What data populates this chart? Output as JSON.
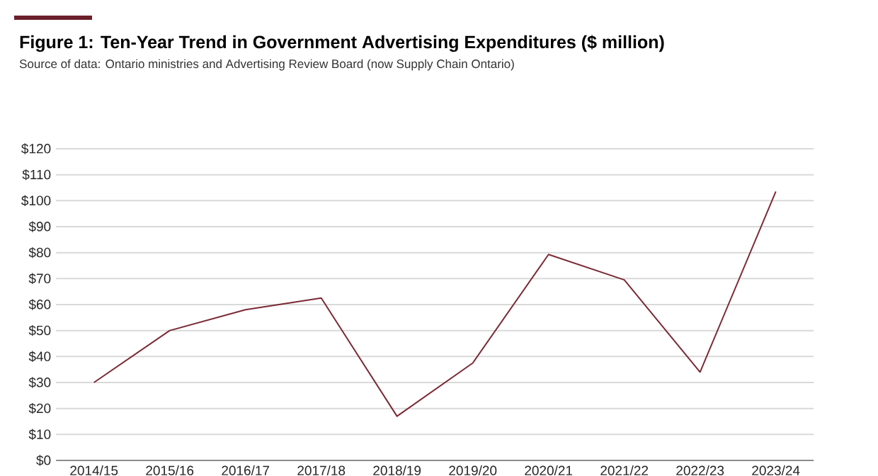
{
  "chart_data": {
    "type": "line",
    "title": "Figure 1: Ten-Year Trend in Government Advertising Expenditures ($ million)",
    "subtitle": "Source of data: Ontario ministries and Advertising Review Board (now Supply Chain Ontario)",
    "categories": [
      "2014/15",
      "2015/16",
      "2016/17",
      "2017/18",
      "2018/19",
      "2019/20",
      "2020/21",
      "2021/22",
      "2022/23",
      "2023/24"
    ],
    "series": [
      {
        "color": "#7b2a35",
        "values": [
          30,
          50,
          58,
          62.5,
          17,
          37.5,
          79.3,
          69.5,
          34,
          103.5
        ]
      }
    ],
    "ylim": [
      0,
      120
    ],
    "yticks": [
      {
        "value": 0,
        "label": "$0"
      },
      {
        "value": 10,
        "label": "$10"
      },
      {
        "value": 20,
        "label": "$20"
      },
      {
        "value": 30,
        "label": "$30"
      },
      {
        "value": 40,
        "label": "$40"
      },
      {
        "value": 50,
        "label": "$50"
      },
      {
        "value": 60,
        "label": "$60"
      },
      {
        "value": 70,
        "label": "$70"
      },
      {
        "value": 80,
        "label": "$80"
      },
      {
        "value": 90,
        "label": "$90"
      },
      {
        "value": 100,
        "label": "$100"
      },
      {
        "value": 110,
        "label": "$110"
      },
      {
        "value": 120,
        "label": "$120"
      }
    ],
    "grid": "y",
    "legend": false,
    "marker": "none",
    "line_style": "solid"
  }
}
